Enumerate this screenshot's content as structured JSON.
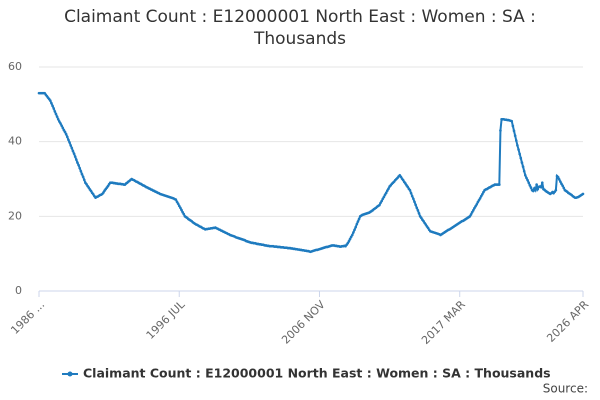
{
  "chart_data": {
    "type": "line",
    "title": "Claimant Count : E12000001 North East : Women : SA : Thousands",
    "source": "Source:",
    "ylim": [
      0,
      60
    ],
    "yticks": [
      0,
      20,
      40,
      60
    ],
    "grid": true,
    "legend": "bottom",
    "categories": [
      "1986 ...",
      null,
      null,
      null,
      null,
      null,
      null,
      null,
      null,
      null,
      null,
      null,
      null,
      null,
      null,
      null,
      null,
      null,
      null,
      null,
      null,
      null,
      null,
      null,
      null,
      null,
      null,
      null,
      null,
      null,
      null,
      null,
      null,
      null,
      null,
      null,
      null,
      null,
      null,
      null,
      null,
      null,
      null,
      null,
      null,
      null,
      null,
      null,
      null,
      null,
      null,
      null,
      null,
      null,
      null,
      null,
      null,
      null,
      null,
      null,
      null,
      null,
      null,
      null,
      null,
      null,
      null,
      null,
      null,
      null,
      null,
      null,
      null,
      null,
      null,
      null,
      null,
      null,
      null,
      null,
      null,
      null,
      null,
      null,
      null,
      null,
      null,
      null,
      null,
      null,
      null,
      null,
      null,
      null,
      null,
      null,
      null,
      null,
      null,
      null,
      null,
      null,
      null,
      null,
      null,
      null,
      null,
      null,
      null,
      null,
      null,
      null,
      null,
      null,
      null,
      null,
      null,
      null,
      null,
      null,
      null,
      null,
      null,
      null,
      "1996 JUL",
      null,
      null,
      null,
      null,
      null,
      null,
      null,
      null,
      null,
      null,
      null,
      null,
      null,
      null,
      null,
      null,
      null,
      null,
      null,
      null,
      null,
      null,
      null,
      null,
      null,
      null,
      null,
      null,
      null,
      null,
      null,
      null,
      null,
      null,
      null,
      null,
      null,
      null,
      null,
      null,
      null,
      null,
      null,
      null,
      null,
      null,
      null,
      null,
      null,
      null,
      null,
      null,
      null,
      null,
      null,
      null,
      null,
      null,
      null,
      null,
      null,
      null,
      null,
      null,
      null,
      null,
      null,
      null,
      null,
      null,
      null,
      null,
      null,
      null,
      null,
      null,
      null,
      null,
      null,
      null,
      null,
      null,
      null,
      null,
      null,
      null,
      null,
      null,
      null,
      null,
      null,
      null,
      null,
      null,
      null,
      null,
      null,
      null,
      null,
      null,
      null,
      null,
      null,
      null,
      null,
      null,
      null,
      null,
      null,
      null,
      null,
      null,
      null,
      null,
      null,
      null,
      null,
      null,
      null,
      null,
      null,
      null,
      null,
      "2006 NOV",
      null,
      null,
      null,
      null,
      null,
      null,
      null,
      null,
      null,
      null,
      null,
      null,
      null,
      null,
      null,
      null,
      null,
      null,
      null,
      null,
      null,
      null,
      null,
      null,
      null,
      null,
      null,
      null,
      null,
      null,
      null,
      null,
      null,
      null,
      null,
      null,
      null,
      null,
      null,
      null,
      null,
      null,
      null,
      null,
      null,
      null,
      null,
      null,
      null,
      null,
      null,
      null,
      null,
      null,
      null,
      null,
      null,
      null,
      null,
      null,
      null,
      null,
      null,
      null,
      null,
      null,
      null,
      null,
      null,
      null,
      null,
      null,
      null,
      null,
      null,
      null,
      null,
      null,
      null,
      null,
      null,
      null,
      null,
      null,
      null,
      null,
      null,
      null,
      null,
      null,
      null,
      null,
      null,
      null,
      null,
      null,
      null,
      null,
      null,
      null,
      null,
      null,
      null,
      null,
      null,
      null,
      null,
      null,
      null,
      null,
      null,
      null,
      null,
      null,
      null,
      null,
      null,
      null,
      null,
      null,
      null,
      null,
      null,
      "2017 MAR",
      null,
      null,
      null,
      null,
      null,
      null,
      null,
      null,
      null,
      null,
      null,
      null,
      null,
      null,
      null,
      null,
      null,
      null,
      null,
      null,
      null,
      null,
      null,
      null,
      null,
      null,
      null,
      null,
      null,
      null,
      null,
      null,
      null,
      null,
      null,
      null,
      null,
      null,
      null,
      null,
      null,
      null,
      null,
      null,
      null,
      null,
      null,
      null,
      null,
      null,
      null,
      null,
      null,
      null,
      null,
      null,
      null,
      null,
      null,
      null,
      null,
      null,
      null,
      null,
      null,
      null,
      null,
      null,
      null,
      null,
      null,
      null,
      null,
      null,
      null,
      null,
      null,
      null,
      null,
      null,
      null,
      null,
      null,
      null,
      null,
      null,
      null,
      null,
      null,
      null,
      null,
      null,
      null,
      null,
      null,
      null,
      null,
      null,
      null,
      null,
      null,
      null,
      null,
      null,
      null,
      null,
      null,
      null,
      "2026 APR"
    ],
    "series": [
      {
        "name": "Claimant Count : E12000001 North East : Women : SA : Thousands",
        "color": "#1f7bbf",
        "values": [
          53,
          53,
          53,
          53,
          53,
          53,
          52.6,
          52.2,
          51.8,
          51.4,
          51,
          50.3,
          49.6,
          48.9,
          48.1,
          47.4,
          46.7,
          46,
          45.4,
          44.9,
          44.3,
          43.7,
          43.1,
          42.6,
          42,
          41.3,
          40.5,
          39.8,
          39,
          38.3,
          37.5,
          36.8,
          36,
          35.2,
          34.4,
          33.7,
          32.9,
          32.1,
          31.3,
          30.6,
          29.8,
          29,
          28.6,
          28.1,
          27.7,
          27.2,
          26.8,
          26.3,
          25.9,
          25.4,
          25,
          25.2,
          25.3,
          25.5,
          25.7,
          25.8,
          26,
          26.4,
          26.9,
          27.3,
          27.7,
          28.1,
          28.6,
          29,
          29,
          29,
          28.9,
          28.9,
          28.8,
          28.8,
          28.7,
          28.7,
          28.7,
          28.6,
          28.6,
          28.5,
          28.5,
          28.8,
          29,
          29.3,
          29.5,
          29.8,
          30,
          29.8,
          29.7,
          29.5,
          29.3,
          29.2,
          29,
          28.8,
          28.7,
          28.5,
          28.3,
          28.2,
          28,
          27.8,
          27.7,
          27.5,
          27.4,
          27.2,
          27.1,
          26.9,
          26.8,
          26.6,
          26.5,
          26.3,
          26.2,
          26,
          25.9,
          25.8,
          25.7,
          25.6,
          25.5,
          25.4,
          25.3,
          25.2,
          25.1,
          25,
          24.9,
          24.8,
          24.6,
          24.5,
          23.9,
          23.4,
          22.8,
          22.3,
          21.7,
          21.1,
          20.6,
          20,
          19.8,
          19.6,
          19.3,
          19.1,
          18.9,
          18.7,
          18.4,
          18.2,
          18,
          17.8,
          17.7,
          17.5,
          17.3,
          17.2,
          17,
          16.8,
          16.7,
          16.5,
          16.6,
          16.6,
          16.7,
          16.7,
          16.8,
          16.8,
          16.9,
          16.9,
          17,
          16.8,
          16.7,
          16.5,
          16.4,
          16.2,
          16.1,
          15.9,
          15.8,
          15.6,
          15.5,
          15.3,
          15.2,
          15,
          14.9,
          14.8,
          14.7,
          14.6,
          14.4,
          14.3,
          14.2,
          14.1,
          14,
          13.9,
          13.8,
          13.7,
          13.6,
          13.4,
          13.3,
          13.2,
          13.1,
          13,
          12.9,
          12.9,
          12.8,
          12.8,
          12.7,
          12.6,
          12.6,
          12.5,
          12.5,
          12.4,
          12.4,
          12.3,
          12.2,
          12.2,
          12.1,
          12.1,
          12,
          12,
          12,
          12,
          11.9,
          11.9,
          11.9,
          11.8,
          11.8,
          11.8,
          11.7,
          11.7,
          11.7,
          11.6,
          11.6,
          11.6,
          11.5,
          11.5,
          11.5,
          11.4,
          11.4,
          11.3,
          11.3,
          11.2,
          11.2,
          11.1,
          11.1,
          11,
          11,
          10.9,
          10.9,
          10.8,
          10.8,
          10.7,
          10.7,
          10.6,
          10.5,
          10.6,
          10.7,
          10.8,
          10.9,
          11,
          11,
          11.1,
          11.2,
          11.3,
          11.4,
          11.5,
          11.6,
          11.7,
          11.8,
          11.8,
          11.9,
          12,
          12.1,
          12.2,
          12.2,
          12.2,
          12.1,
          12.1,
          12,
          12,
          11.9,
          11.9,
          12,
          12,
          12.1,
          12,
          12.4,
          12.8,
          13.3,
          13.9,
          14.5,
          15,
          15.7,
          16.4,
          17.1,
          17.9,
          18.6,
          19.3,
          20,
          20.2,
          20.4,
          20.5,
          20.6,
          20.7,
          20.8,
          20.9,
          21,
          21.2,
          21.4,
          21.6,
          21.9,
          22.1,
          22.3,
          22.6,
          22.8,
          23,
          23.6,
          24.1,
          24.7,
          25.2,
          25.8,
          26.3,
          26.9,
          27.4,
          28,
          28.3,
          28.7,
          29,
          29.3,
          29.7,
          30,
          30.3,
          30.7,
          31,
          30.6,
          30.1,
          29.7,
          29.2,
          28.8,
          28.3,
          27.9,
          27.4,
          27,
          26.2,
          25.4,
          24.7,
          23.9,
          23.1,
          22.3,
          21.6,
          20.8,
          20,
          19.6,
          19.1,
          18.7,
          18.2,
          17.8,
          17.3,
          16.9,
          16.4,
          16,
          15.9,
          15.8,
          15.7,
          15.6,
          15.5,
          15.4,
          15.3,
          15.2,
          15,
          15.2,
          15.4,
          15.6,
          15.8,
          16,
          16.2,
          16.4,
          16.5,
          16.7,
          16.9,
          17.1,
          17.3,
          17.5,
          17.7,
          17.9,
          18.1,
          18.3,
          18.5,
          18.7,
          18.8,
          19,
          19.2,
          19.4,
          19.6,
          19.8,
          20,
          20.5,
          21.1,
          21.6,
          22.2,
          22.7,
          23.2,
          23.8,
          24.3,
          24.8,
          25.4,
          25.9,
          26.5,
          27,
          27.2,
          27.3,
          27.5,
          27.7,
          27.8,
          28,
          28.2,
          28.3,
          28.5,
          28.5,
          28.5,
          28.5,
          28.5,
          43,
          46,
          46,
          46,
          45.9,
          45.9,
          45.8,
          45.8,
          45.7,
          45.6,
          45.5,
          44.2,
          42.9,
          41.6,
          40.3,
          39,
          37.9,
          36.7,
          35.6,
          34.4,
          33.3,
          32.1,
          31,
          30.3,
          29.7,
          29,
          28.3,
          27.7,
          27,
          26.8,
          27.5,
          27,
          28.5,
          27.3,
          27.9,
          28,
          27.8,
          29,
          27.3,
          27.1,
          26.8,
          26.6,
          26.4,
          26.2,
          26,
          26.2,
          26.5,
          26.2,
          26.6,
          27,
          30.8,
          30.5,
          29.9,
          29.3,
          28.7,
          28.2,
          27.6,
          27,
          26.8,
          26.6,
          26.3,
          26.1,
          25.9,
          25.7,
          25.4,
          25.2,
          25,
          25,
          25.1,
          25.2,
          25.4,
          25.6,
          25.8,
          26
        ]
      }
    ]
  }
}
